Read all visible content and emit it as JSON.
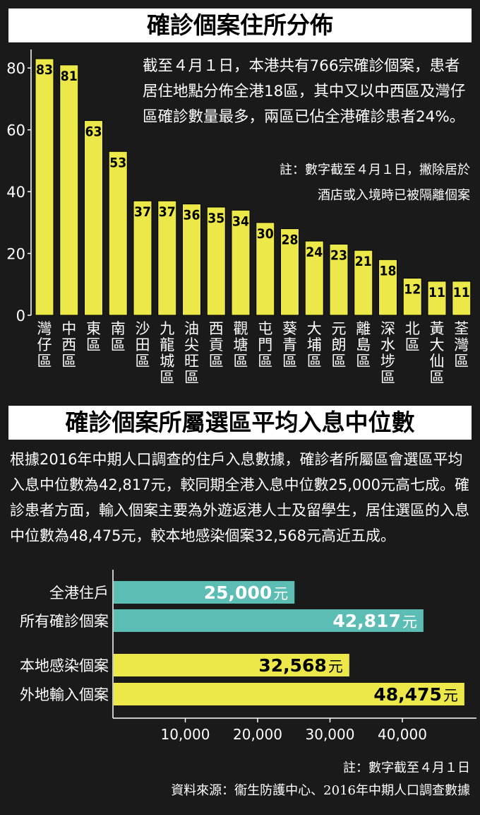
{
  "section1": {
    "title": "確診個案住所分佈",
    "description": "截至４月１日，本港共有766宗確診個案，患者居住地點分佈全港18區，其中又以中西區及灣仔區確診數量最多，兩區已佔全港確診患者24%。",
    "note_line1": "註：數字截至４月１日，撇除居於",
    "note_line2": "酒店或入境時已被隔離個案"
  },
  "section2": {
    "title": "確診個案所屬選區平均入息中位數",
    "description": "根據2016年中期人口調查的住戶入息數據，確診者所屬區會選區平均入息中位數為42,817元，較同期全港入息中位數25,000元高七成。確診患者方面，輸入個案主要為外遊返港人士及留學生，居住選區的入息中位數為48,475元，較本地感染個案32,568元高近五成。"
  },
  "footer": {
    "note": "註：數字截至４月１日",
    "source": "資料來源：衞生防護中心、2016年中期人口調查數據"
  },
  "colors": {
    "background": "#1a1a1a",
    "yellow": "#ede84a",
    "teal": "#5cbdb4"
  },
  "chart_data": [
    {
      "type": "bar",
      "orientation": "vertical",
      "categories": [
        "灣仔區",
        "中西區",
        "東區",
        "南區",
        "沙田區",
        "九龍城區",
        "油尖旺區",
        "西貢區",
        "觀塘區",
        "屯門區",
        "葵青區",
        "大埔區",
        "元朗區",
        "離島區",
        "深水埗區",
        "北區",
        "黃大仙區",
        "荃灣區"
      ],
      "values": [
        83,
        81,
        63,
        53,
        37,
        37,
        36,
        35,
        34,
        30,
        28,
        24,
        23,
        21,
        18,
        12,
        11,
        11
      ],
      "yticks": [
        "0",
        "20",
        "40",
        "60",
        "80"
      ],
      "ylim": [
        0,
        86
      ],
      "data_labels": true,
      "bar_color": "#ede84a",
      "grid": false
    },
    {
      "type": "bar",
      "orientation": "horizontal",
      "categories": [
        "全港住戶",
        "所有確診個案",
        "本地感染個案",
        "外地輸入個案"
      ],
      "values": [
        25000,
        42817,
        32568,
        48475
      ],
      "value_labels": [
        "25,000",
        "42,817",
        "32,568",
        "48,475"
      ],
      "unit": "元",
      "bar_colors": [
        "#5cbdb4",
        "#5cbdb4",
        "#ede84a",
        "#ede84a"
      ],
      "xticks": [
        "10,000",
        "20,000",
        "30,000",
        "40,000"
      ],
      "xlim": [
        0,
        48475
      ],
      "grid": false
    }
  ]
}
